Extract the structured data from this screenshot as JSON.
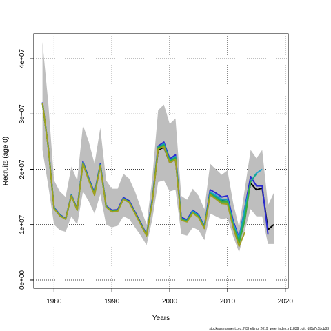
{
  "chart_data": {
    "type": "line",
    "title": "",
    "xlabel": "Years",
    "ylabel": "Recruits (age 0)",
    "xlim": [
      1976.5,
      2020.5
    ],
    "ylim": [
      -1500000,
      44500000
    ],
    "grid": true,
    "x_ticks": [
      1980,
      1990,
      2000,
      2010,
      2020
    ],
    "x_tick_labels": [
      "1980",
      "1990",
      "2000",
      "2010",
      "2020"
    ],
    "y_ticks": [
      0,
      10000000,
      20000000,
      30000000,
      40000000
    ],
    "y_tick_labels": [
      "0e+00",
      "1e+07",
      "2e+07",
      "3e+07",
      "4e+07"
    ],
    "footnote": "stockassessment.org, NShelting_2019_wee_index,  r11839 ,  git:  df0b7c1bcb83",
    "band": {
      "x": [
        1978,
        1979,
        1980,
        1981,
        1982,
        1983,
        1984,
        1985,
        1986,
        1987,
        1988,
        1989,
        1990,
        1991,
        1992,
        1993,
        1994,
        1995,
        1996,
        1997,
        1998,
        1999,
        2000,
        2001,
        2002,
        2003,
        2004,
        2005,
        2006,
        2007,
        2008,
        2009,
        2010,
        2011,
        2012,
        2013,
        2014,
        2015,
        2016,
        2017,
        2018
      ],
      "upper": [
        43000000,
        32000000,
        18000000,
        16000000,
        15000000,
        20500000,
        18000000,
        28000000,
        25000000,
        21000000,
        27500000,
        18000000,
        16500000,
        16500000,
        19200000,
        18300000,
        16000000,
        13000000,
        10000000,
        18500000,
        30700000,
        31700000,
        28200000,
        29200000,
        15200000,
        14500000,
        16500000,
        15200000,
        12800000,
        21000000,
        20000000,
        19000000,
        19800000,
        13800000,
        9500000,
        16500000,
        23500000,
        22000000,
        23500000,
        13500000,
        15700000
      ],
      "lower": [
        23500000,
        17000000,
        10000000,
        9000000,
        8700000,
        11500000,
        10000000,
        16000000,
        14200000,
        12000000,
        15500000,
        10000000,
        9500000,
        9800000,
        11500000,
        11000000,
        9500000,
        8000000,
        6300000,
        11000000,
        17700000,
        18000000,
        16000000,
        16300000,
        8300000,
        8000000,
        9500000,
        9000000,
        7200000,
        12000000,
        11500000,
        11000000,
        11200000,
        7800000,
        5000000,
        9000000,
        12800000,
        11500000,
        11500000,
        6500000,
        6500000
      ]
    },
    "series": [
      {
        "color": "#000000",
        "x": [
          1978,
          1979,
          1980,
          1981,
          1982,
          1983,
          1984,
          1985,
          1986,
          1987,
          1988,
          1989,
          1990,
          1991,
          1992,
          1993,
          1994,
          1995,
          1996,
          1997,
          1998,
          1999,
          2000,
          2001,
          2002,
          2003,
          2004,
          2005,
          2006,
          2007,
          2008,
          2009,
          2010,
          2011,
          2012,
          2013,
          2014,
          2015,
          2016,
          2017,
          2018
        ],
        "values": [
          32000000,
          24000000,
          13000000,
          11700000,
          11000000,
          15300000,
          12700000,
          21200000,
          18200000,
          15500000,
          20800000,
          13300000,
          12500000,
          12600000,
          14800000,
          14200000,
          12200000,
          10200000,
          8100000,
          14400000,
          23500000,
          24000000,
          21200000,
          21800000,
          11100000,
          10700000,
          12400000,
          11600000,
          9600000,
          15800000,
          15200000,
          14500000,
          14600000,
          10300000,
          7200000,
          12400000,
          17500000,
          16300000,
          16600000,
          9100000,
          10000000
        ]
      },
      {
        "color": "#2a2ad2",
        "x": [
          1978,
          1979,
          1980,
          1981,
          1982,
          1983,
          1984,
          1985,
          1986,
          1987,
          1988,
          1989,
          1990,
          1991,
          1992,
          1993,
          1994,
          1995,
          1996,
          1997,
          1998,
          1999,
          2000,
          2001,
          2002,
          2003,
          2004,
          2005,
          2006,
          2007,
          2008,
          2009,
          2010,
          2011,
          2012,
          2013,
          2014,
          2015,
          2016,
          2017
        ],
        "values": [
          32100000,
          24100000,
          13100000,
          11800000,
          11100000,
          15400000,
          12800000,
          21400000,
          18400000,
          15700000,
          21000000,
          13400000,
          12600000,
          12700000,
          14900000,
          14300000,
          12300000,
          10300000,
          8200000,
          14600000,
          24200000,
          24900000,
          21900000,
          22600000,
          11300000,
          10900000,
          12600000,
          11800000,
          9700000,
          16300000,
          15700000,
          15000000,
          15200000,
          10600000,
          7600000,
          13000000,
          18700000,
          17000000,
          17000000,
          8200000
        ]
      },
      {
        "color": "#20a6d0",
        "x": [
          1978,
          1979,
          1980,
          1981,
          1982,
          1983,
          1984,
          1985,
          1986,
          1987,
          1988,
          1989,
          1990,
          1991,
          1992,
          1993,
          1994,
          1995,
          1996,
          1997,
          1998,
          1999,
          2000,
          2001,
          2002,
          2003,
          2004,
          2005,
          2006,
          2007,
          2008,
          2009,
          2010,
          2011,
          2012,
          2013,
          2014,
          2015,
          2016
        ],
        "values": [
          32000000,
          24000000,
          13000000,
          11700000,
          11000000,
          15300000,
          12700000,
          21200000,
          18200000,
          15500000,
          20800000,
          13300000,
          12400000,
          12500000,
          14700000,
          14100000,
          12100000,
          10100000,
          8100000,
          14400000,
          24000000,
          24600000,
          21600000,
          22300000,
          11100000,
          10700000,
          12400000,
          11600000,
          9600000,
          15900000,
          15300000,
          14600000,
          14600000,
          10200000,
          7400000,
          12800000,
          17700000,
          19300000,
          20000000
        ]
      },
      {
        "color": "#10a890",
        "x": [
          1978,
          1979,
          1980,
          1981,
          1982,
          1983,
          1984,
          1985,
          1986,
          1987,
          1988,
          1989,
          1990,
          1991,
          1992,
          1993,
          1994,
          1995,
          1996,
          1997,
          1998,
          1999,
          2000,
          2001,
          2002,
          2003,
          2004,
          2005,
          2006,
          2007,
          2008,
          2009,
          2010,
          2011,
          2012,
          2013,
          2014,
          2015
        ],
        "values": [
          32000000,
          24000000,
          13000000,
          11700000,
          11000000,
          15300000,
          12700000,
          21200000,
          18200000,
          15500000,
          20800000,
          13300000,
          12400000,
          12500000,
          14700000,
          14100000,
          12100000,
          10100000,
          8100000,
          14300000,
          24000000,
          24500000,
          21500000,
          22200000,
          11000000,
          10700000,
          12300000,
          11500000,
          9500000,
          15700000,
          15000000,
          14300000,
          14300000,
          9900000,
          7100000,
          12000000,
          17800000,
          19200000
        ]
      },
      {
        "color": "#3caa3c",
        "x": [
          1978,
          1979,
          1980,
          1981,
          1982,
          1983,
          1984,
          1985,
          1986,
          1987,
          1988,
          1989,
          1990,
          1991,
          1992,
          1993,
          1994,
          1995,
          1996,
          1997,
          1998,
          1999,
          2000,
          2001,
          2002,
          2003,
          2004,
          2005,
          2006,
          2007,
          2008,
          2009,
          2010,
          2011,
          2012,
          2013,
          2014
        ],
        "values": [
          32000000,
          24000000,
          12900000,
          11600000,
          11000000,
          15200000,
          12600000,
          21100000,
          18100000,
          15400000,
          20700000,
          13200000,
          12400000,
          12500000,
          14600000,
          14000000,
          12100000,
          10100000,
          8000000,
          14200000,
          23900000,
          24300000,
          21400000,
          22000000,
          10900000,
          10600000,
          12200000,
          11400000,
          9400000,
          15600000,
          14800000,
          14100000,
          14100000,
          9700000,
          6700000,
          10800000,
          17900000
        ]
      },
      {
        "color": "#a0a020",
        "x": [
          1978,
          1979,
          1980,
          1981,
          1982,
          1983,
          1984,
          1985,
          1986,
          1987,
          1988,
          1989,
          1990,
          1991,
          1992,
          1993,
          1994,
          1995,
          1996,
          1997,
          1998,
          1999,
          2000,
          2001,
          2002,
          2003,
          2004,
          2005,
          2006,
          2007,
          2008,
          2009,
          2010,
          2011,
          2012,
          2013
        ],
        "values": [
          32000000,
          24000000,
          12900000,
          11600000,
          11000000,
          15200000,
          12600000,
          21000000,
          18000000,
          15300000,
          20600000,
          13200000,
          12300000,
          12400000,
          14600000,
          14000000,
          12000000,
          10000000,
          8000000,
          14100000,
          23700000,
          24100000,
          21200000,
          21800000,
          10800000,
          10500000,
          12100000,
          11300000,
          9300000,
          15400000,
          14600000,
          13800000,
          13700000,
          9400000,
          6100000,
          8600000
        ]
      }
    ]
  }
}
